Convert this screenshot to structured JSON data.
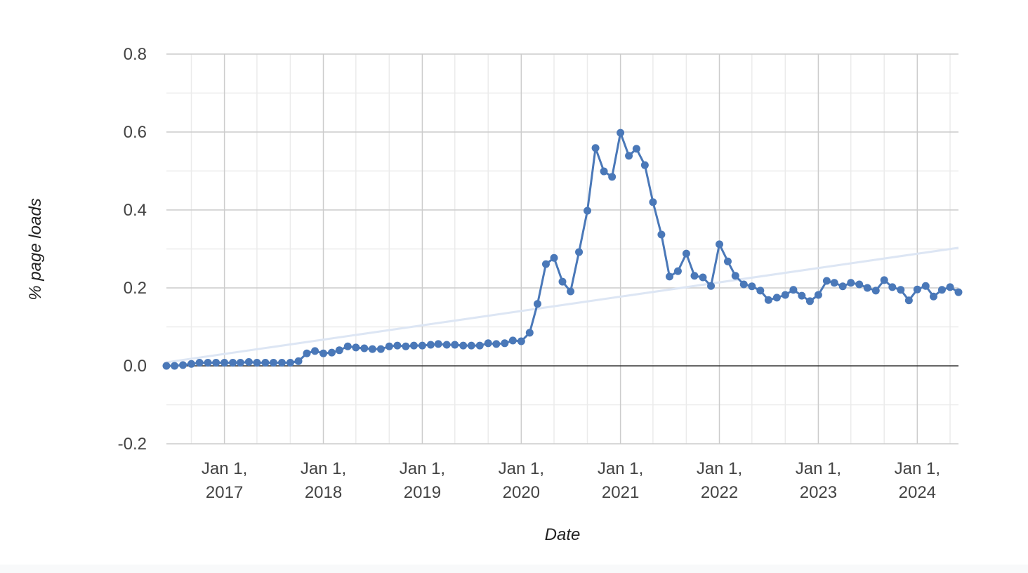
{
  "chart_data": {
    "type": "line",
    "x_label": "Date",
    "y_label": "% page loads",
    "color": "#4a78b8",
    "x": [
      "2016-06-01",
      "2016-07-01",
      "2016-08-01",
      "2016-09-01",
      "2016-10-01",
      "2016-11-01",
      "2016-12-01",
      "2017-01-01",
      "2017-02-01",
      "2017-03-01",
      "2017-04-01",
      "2017-05-01",
      "2017-06-01",
      "2017-07-01",
      "2017-08-01",
      "2017-09-01",
      "2017-10-01",
      "2017-11-01",
      "2017-12-01",
      "2018-01-01",
      "2018-02-01",
      "2018-03-01",
      "2018-04-01",
      "2018-05-01",
      "2018-06-01",
      "2018-07-01",
      "2018-08-01",
      "2018-09-01",
      "2018-10-01",
      "2018-11-01",
      "2018-12-01",
      "2019-01-01",
      "2019-02-01",
      "2019-03-01",
      "2019-04-01",
      "2019-05-01",
      "2019-06-01",
      "2019-07-01",
      "2019-08-01",
      "2019-09-01",
      "2019-10-01",
      "2019-11-01",
      "2019-12-01",
      "2020-01-01",
      "2020-02-01",
      "2020-03-01",
      "2020-04-01",
      "2020-05-01",
      "2020-06-01",
      "2020-07-01",
      "2020-08-01",
      "2020-09-01",
      "2020-10-01",
      "2020-11-01",
      "2020-12-01",
      "2021-01-01",
      "2021-02-01",
      "2021-03-01",
      "2021-04-01",
      "2021-05-01",
      "2021-06-01",
      "2021-07-01",
      "2021-08-01",
      "2021-09-01",
      "2021-10-01",
      "2021-11-01",
      "2021-12-01",
      "2022-01-01",
      "2022-02-01",
      "2022-03-01",
      "2022-04-01",
      "2022-05-01",
      "2022-06-01",
      "2022-07-01",
      "2022-08-01",
      "2022-09-01",
      "2022-10-01",
      "2022-11-01",
      "2022-12-01",
      "2023-01-01",
      "2023-02-01",
      "2023-03-01",
      "2023-04-01",
      "2023-05-01",
      "2023-06-01",
      "2023-07-01",
      "2023-08-01",
      "2023-09-01",
      "2023-10-01",
      "2023-11-01",
      "2023-12-01",
      "2024-01-01",
      "2024-02-01",
      "2024-03-01",
      "2024-04-01",
      "2024-05-01",
      "2024-06-01"
    ],
    "values": [
      0.0,
      0.0,
      0.002,
      0.005,
      0.008,
      0.008,
      0.008,
      0.008,
      0.008,
      0.008,
      0.01,
      0.008,
      0.008,
      0.008,
      0.008,
      0.008,
      0.012,
      0.032,
      0.038,
      0.032,
      0.034,
      0.04,
      0.05,
      0.047,
      0.045,
      0.043,
      0.043,
      0.05,
      0.052,
      0.05,
      0.052,
      0.052,
      0.054,
      0.056,
      0.054,
      0.054,
      0.052,
      0.052,
      0.052,
      0.058,
      0.056,
      0.058,
      0.065,
      0.063,
      0.085,
      0.159,
      0.261,
      0.277,
      0.216,
      0.191,
      0.292,
      0.398,
      0.559,
      0.499,
      0.485,
      0.598,
      0.539,
      0.557,
      0.515,
      0.42,
      0.337,
      0.229,
      0.243,
      0.288,
      0.231,
      0.227,
      0.205,
      0.312,
      0.268,
      0.231,
      0.209,
      0.204,
      0.193,
      0.169,
      0.175,
      0.182,
      0.195,
      0.18,
      0.166,
      0.182,
      0.218,
      0.213,
      0.204,
      0.213,
      0.209,
      0.2,
      0.193,
      0.22,
      0.202,
      0.195,
      0.168,
      0.196,
      0.205,
      0.178,
      0.195,
      0.202,
      0.189
    ],
    "trendline": {
      "x": [
        "2016-06-01",
        "2024-06-01"
      ],
      "values": [
        0.009,
        0.303
      ],
      "color": "#dde6f4"
    },
    "xlim": [
      "2016-06-01",
      "2024-06-01"
    ],
    "xticks": [
      {
        "value": "2017-01-01",
        "label": "Jan 1, 2017"
      },
      {
        "value": "2018-01-01",
        "label": "Jan 1, 2018"
      },
      {
        "value": "2019-01-01",
        "label": "Jan 1, 2019"
      },
      {
        "value": "2020-01-01",
        "label": "Jan 1, 2020"
      },
      {
        "value": "2021-01-01",
        "label": "Jan 1, 2021"
      },
      {
        "value": "2022-01-01",
        "label": "Jan 1, 2022"
      },
      {
        "value": "2023-01-01",
        "label": "Jan 1, 2023"
      },
      {
        "value": "2024-01-01",
        "label": "Jan 1, 2024"
      }
    ],
    "ylim": [
      -0.2,
      0.8
    ],
    "yticks": [
      -0.2,
      {
        "value": 0,
        "label": "0.0"
      },
      0.2,
      0.4,
      0.6,
      0.8
    ],
    "grid": true
  }
}
